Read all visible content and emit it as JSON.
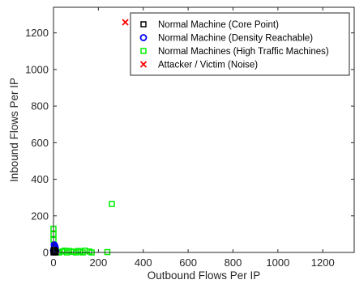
{
  "chart_data": {
    "type": "scatter",
    "xlabel": "Outbound Flows Per IP",
    "ylabel": "Inbound Flows Per IP",
    "xlim": [
      0,
      1340
    ],
    "ylim": [
      0,
      1340
    ],
    "xticks": [
      0,
      200,
      400,
      600,
      800,
      1000,
      1200
    ],
    "yticks": [
      0,
      200,
      400,
      600,
      800,
      1000,
      1200
    ],
    "grid": false,
    "legend_position": "top-right",
    "series": [
      {
        "name": "Normal Machine (Core Point)",
        "marker": "square",
        "color": "#000000",
        "points": [
          [
            0,
            0
          ],
          [
            2,
            2
          ],
          [
            4,
            1
          ],
          [
            6,
            3
          ],
          [
            8,
            0
          ],
          [
            3,
            5
          ],
          [
            5,
            8
          ],
          [
            1,
            10
          ],
          [
            7,
            6
          ],
          [
            10,
            2
          ],
          [
            2,
            14
          ],
          [
            9,
            9
          ]
        ]
      },
      {
        "name": "Normal Machine (Density Reachable)",
        "marker": "circle",
        "color": "#0000ff",
        "points": [
          [
            0,
            10
          ],
          [
            2,
            20
          ],
          [
            4,
            28
          ],
          [
            6,
            35
          ],
          [
            3,
            42
          ],
          [
            5,
            15
          ],
          [
            8,
            25
          ],
          [
            10,
            8
          ],
          [
            1,
            5
          ],
          [
            7,
            30
          ]
        ]
      },
      {
        "name": "Normal Machines (High Traffic Machines)",
        "marker": "square",
        "color": "#00ee00",
        "points": [
          [
            0,
            130
          ],
          [
            0,
            100
          ],
          [
            0,
            70
          ],
          [
            5,
            30
          ],
          [
            10,
            5
          ],
          [
            25,
            0
          ],
          [
            40,
            5
          ],
          [
            50,
            10
          ],
          [
            60,
            0
          ],
          [
            70,
            8
          ],
          [
            80,
            5
          ],
          [
            90,
            3
          ],
          [
            100,
            0
          ],
          [
            110,
            8
          ],
          [
            120,
            5
          ],
          [
            130,
            0
          ],
          [
            140,
            10
          ],
          [
            160,
            5
          ],
          [
            170,
            0
          ],
          [
            240,
            2
          ],
          [
            260,
            265
          ]
        ]
      },
      {
        "name": "Attacker / Victim (Noise)",
        "marker": "x",
        "color": "#ff0000",
        "points": [
          [
            320,
            1258
          ]
        ]
      }
    ]
  }
}
